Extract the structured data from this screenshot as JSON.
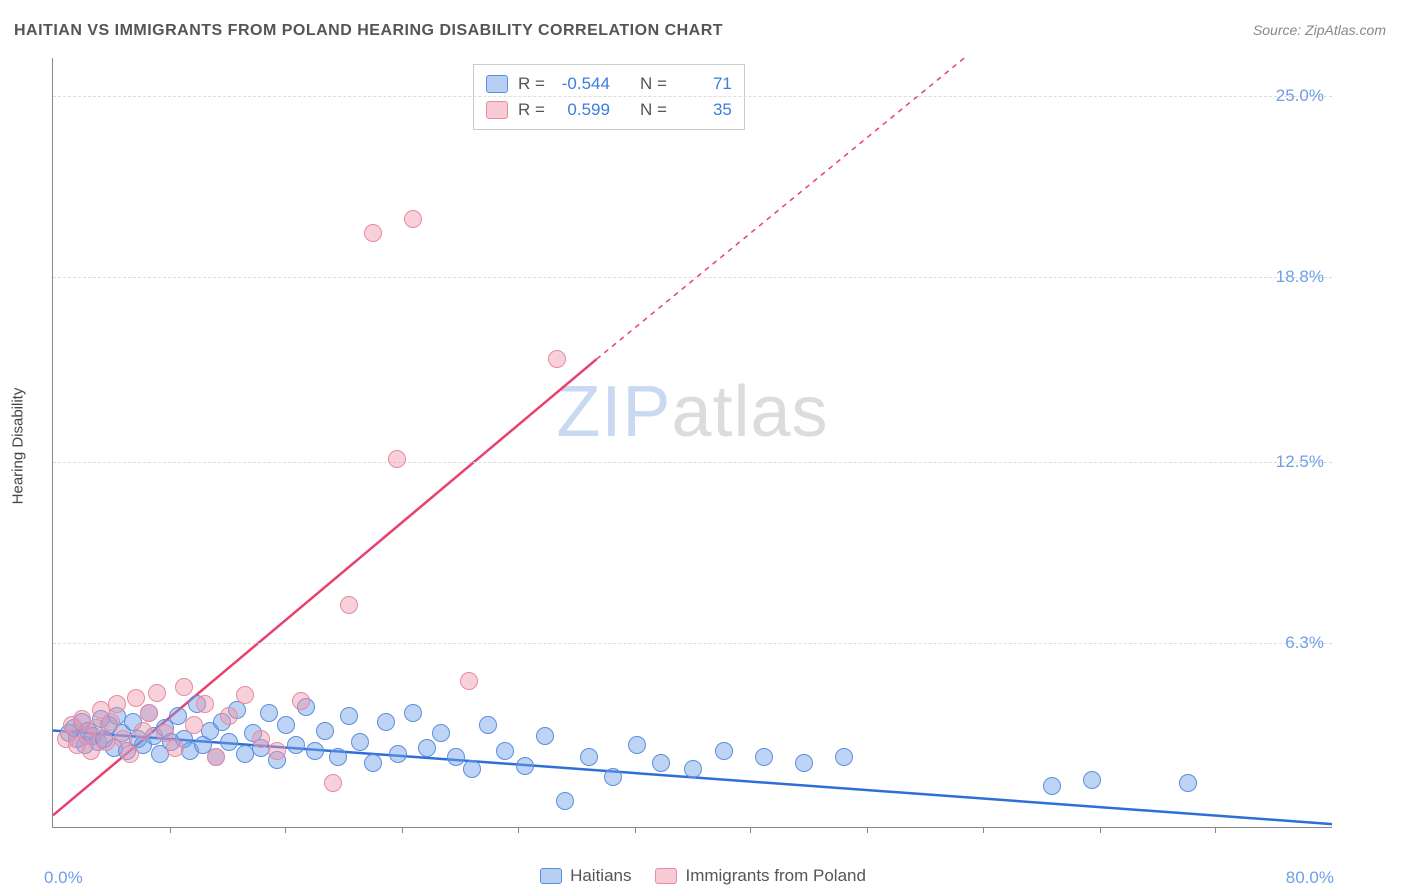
{
  "title": "HAITIAN VS IMMIGRANTS FROM POLAND HEARING DISABILITY CORRELATION CHART",
  "source_label": "Source: ZipAtlas.com",
  "watermark": {
    "zip": "ZIP",
    "atlas": "atlas"
  },
  "chart": {
    "type": "scatter",
    "ylabel": "Hearing Disability",
    "background_color": "#ffffff",
    "grid_color": "#dddddd",
    "axis_color": "#888888",
    "text_accent_color": "#6f9fe8",
    "xlim": [
      0,
      80
    ],
    "ylim": [
      0,
      26.3
    ],
    "x_min_label": "0.0%",
    "x_max_label": "80.0%",
    "yticks": [
      {
        "value": 6.3,
        "label": "6.3%"
      },
      {
        "value": 12.5,
        "label": "12.5%"
      },
      {
        "value": 18.8,
        "label": "18.8%"
      },
      {
        "value": 25.0,
        "label": "25.0%"
      }
    ],
    "xticks": [
      7.3,
      14.5,
      21.8,
      29.1,
      36.4,
      43.6,
      50.9,
      58.2,
      65.5,
      72.7
    ],
    "series": [
      {
        "name": "Haitians",
        "marker_color": "rgba(111,159,232,0.45)",
        "marker_border": "#5a8fe0",
        "marker_radius": 9,
        "correlation_r": "-0.544",
        "correlation_n": "71",
        "trend": {
          "x1": 0,
          "y1": 3.3,
          "x2": 80,
          "y2": 0.1,
          "color": "#2e6fd6",
          "width": 2.5,
          "dash": ""
        },
        "points": [
          [
            1.0,
            3.2
          ],
          [
            1.3,
            3.4
          ],
          [
            1.5,
            3.0
          ],
          [
            1.8,
            3.6
          ],
          [
            2.0,
            2.8
          ],
          [
            2.2,
            3.3
          ],
          [
            2.5,
            3.1
          ],
          [
            2.8,
            2.9
          ],
          [
            3.0,
            3.7
          ],
          [
            3.2,
            3.0
          ],
          [
            3.5,
            3.5
          ],
          [
            3.8,
            2.7
          ],
          [
            4.0,
            3.8
          ],
          [
            4.3,
            3.2
          ],
          [
            4.6,
            2.6
          ],
          [
            5.0,
            3.6
          ],
          [
            5.3,
            3.0
          ],
          [
            5.6,
            2.8
          ],
          [
            6.0,
            3.9
          ],
          [
            6.3,
            3.1
          ],
          [
            6.7,
            2.5
          ],
          [
            7.0,
            3.4
          ],
          [
            7.4,
            2.9
          ],
          [
            7.8,
            3.8
          ],
          [
            8.2,
            3.0
          ],
          [
            8.6,
            2.6
          ],
          [
            9.0,
            4.2
          ],
          [
            9.4,
            2.8
          ],
          [
            9.8,
            3.3
          ],
          [
            10.2,
            2.4
          ],
          [
            10.6,
            3.6
          ],
          [
            11.0,
            2.9
          ],
          [
            11.5,
            4.0
          ],
          [
            12.0,
            2.5
          ],
          [
            12.5,
            3.2
          ],
          [
            13.0,
            2.7
          ],
          [
            13.5,
            3.9
          ],
          [
            14.0,
            2.3
          ],
          [
            14.6,
            3.5
          ],
          [
            15.2,
            2.8
          ],
          [
            15.8,
            4.1
          ],
          [
            16.4,
            2.6
          ],
          [
            17.0,
            3.3
          ],
          [
            17.8,
            2.4
          ],
          [
            18.5,
            3.8
          ],
          [
            19.2,
            2.9
          ],
          [
            20.0,
            2.2
          ],
          [
            20.8,
            3.6
          ],
          [
            21.6,
            2.5
          ],
          [
            22.5,
            3.9
          ],
          [
            23.4,
            2.7
          ],
          [
            24.3,
            3.2
          ],
          [
            25.2,
            2.4
          ],
          [
            26.2,
            2.0
          ],
          [
            27.2,
            3.5
          ],
          [
            28.3,
            2.6
          ],
          [
            29.5,
            2.1
          ],
          [
            30.8,
            3.1
          ],
          [
            32.0,
            0.9
          ],
          [
            33.5,
            2.4
          ],
          [
            35.0,
            1.7
          ],
          [
            36.5,
            2.8
          ],
          [
            38.0,
            2.2
          ],
          [
            40.0,
            2.0
          ],
          [
            42.0,
            2.6
          ],
          [
            44.5,
            2.4
          ],
          [
            47.0,
            2.2
          ],
          [
            49.5,
            2.4
          ],
          [
            62.5,
            1.4
          ],
          [
            65.0,
            1.6
          ],
          [
            71.0,
            1.5
          ]
        ]
      },
      {
        "name": "Immigrants from Poland",
        "marker_color": "rgba(240,150,170,0.45)",
        "marker_border": "#e88ba5",
        "marker_radius": 9,
        "correlation_r": "0.599",
        "correlation_n": "35",
        "trend": {
          "x1": 0,
          "y1": 0.4,
          "x2": 34,
          "y2": 16.0,
          "color": "#e8416d",
          "width": 2.5,
          "dash": ""
        },
        "trend_ext": {
          "x1": 34,
          "y1": 16.0,
          "x2": 57,
          "y2": 26.3,
          "color": "#e8416d",
          "width": 1.5,
          "dash": "5 5"
        },
        "points": [
          [
            0.8,
            3.0
          ],
          [
            1.2,
            3.5
          ],
          [
            1.5,
            2.8
          ],
          [
            1.8,
            3.7
          ],
          [
            2.1,
            3.1
          ],
          [
            2.4,
            2.6
          ],
          [
            2.7,
            3.4
          ],
          [
            3.0,
            4.0
          ],
          [
            3.3,
            2.9
          ],
          [
            3.6,
            3.6
          ],
          [
            4.0,
            4.2
          ],
          [
            4.4,
            3.0
          ],
          [
            4.8,
            2.5
          ],
          [
            5.2,
            4.4
          ],
          [
            5.6,
            3.3
          ],
          [
            6.0,
            3.9
          ],
          [
            6.5,
            4.6
          ],
          [
            7.0,
            3.2
          ],
          [
            7.6,
            2.7
          ],
          [
            8.2,
            4.8
          ],
          [
            8.8,
            3.5
          ],
          [
            9.5,
            4.2
          ],
          [
            10.2,
            2.4
          ],
          [
            11.0,
            3.8
          ],
          [
            12.0,
            4.5
          ],
          [
            13.0,
            3.0
          ],
          [
            14.0,
            2.6
          ],
          [
            15.5,
            4.3
          ],
          [
            17.5,
            1.5
          ],
          [
            18.5,
            7.6
          ],
          [
            20.0,
            20.3
          ],
          [
            21.5,
            12.6
          ],
          [
            22.5,
            20.8
          ],
          [
            26.0,
            5.0
          ],
          [
            31.5,
            16.0
          ]
        ]
      }
    ],
    "legend_box": {
      "rows": [
        {
          "swatch": "blue",
          "r_label": "R =",
          "n_label": "N ="
        },
        {
          "swatch": "pink",
          "r_label": "R =",
          "n_label": "N ="
        }
      ]
    },
    "bottom_legend": [
      {
        "swatch": "blue"
      },
      {
        "swatch": "pink"
      }
    ]
  }
}
